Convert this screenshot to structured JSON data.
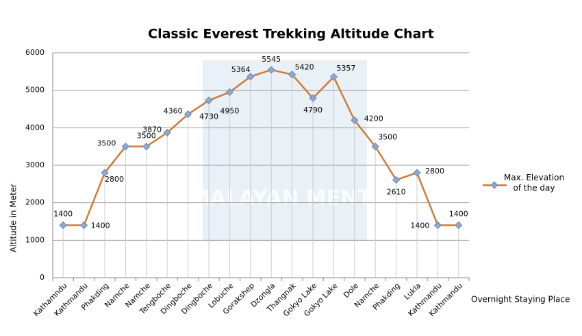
{
  "chart_data": {
    "type": "line",
    "title": "Classic Everest Trekking Altitude Chart",
    "x_label": "Overnight Staying Place",
    "y_label": "Altitude in Meter",
    "watermark": "HIMALAYAN MENTOR",
    "categories": [
      "Kathamndu",
      "Kathmandu",
      "Phakding",
      "Namche",
      "Namche",
      "Tengboche",
      "Dingboche",
      "Dingboche",
      "Lobuche",
      "Gorakshep",
      "Dzongla",
      "Thangnak",
      "Gokyo Lake",
      "Gokyo Lake",
      "Dole",
      "Namche",
      "Phakding",
      "Lukla",
      "Kathmandu",
      "Kathmandu"
    ],
    "series": [
      {
        "name": "Max. Elevation of the day",
        "color": "#d07a33",
        "values": [
          1400,
          1400,
          2800,
          3500,
          3500,
          3870,
          4360,
          4730,
          4950,
          5364,
          5545,
          5420,
          4790,
          5357,
          4200,
          3500,
          2610,
          2800,
          1400,
          1400
        ]
      }
    ],
    "ylim": [
      0,
      6000
    ],
    "yticks": [
      0,
      1000,
      2000,
      3000,
      4000,
      5000,
      6000
    ],
    "grid": true
  }
}
